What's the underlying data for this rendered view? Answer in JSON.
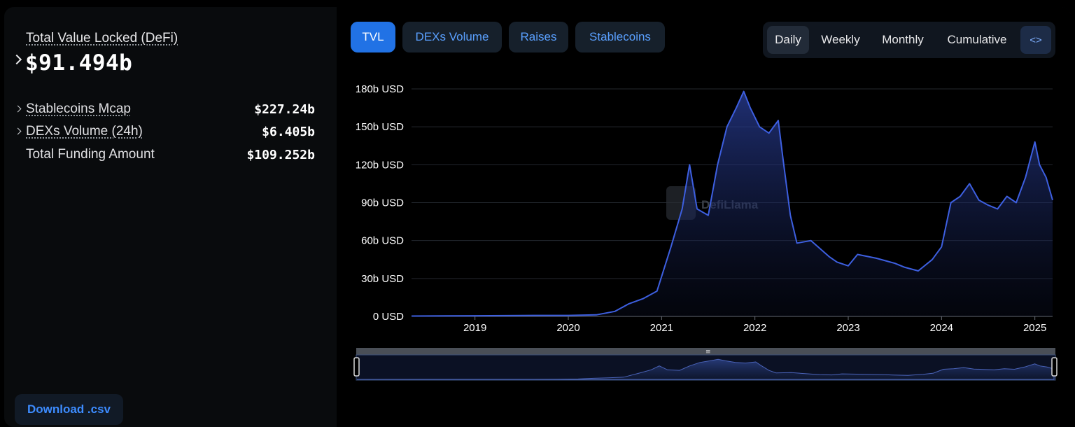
{
  "summary": {
    "tvl_label": "Total Value Locked (DeFi)",
    "tvl_value": "$91.494b",
    "metrics": [
      {
        "label": "Stablecoins Mcap",
        "value": "$227.24b"
      },
      {
        "label": "DEXs Volume (24h)",
        "value": "$6.405b"
      },
      {
        "label": "Total Funding Amount",
        "value": "$109.252b"
      }
    ],
    "download_label": "Download .csv"
  },
  "tabs": [
    {
      "label": "TVL"
    },
    {
      "label": "DEXs Volume"
    },
    {
      "label": "Raises"
    },
    {
      "label": "Stablecoins"
    }
  ],
  "periods": [
    {
      "label": "Daily"
    },
    {
      "label": "Weekly"
    },
    {
      "label": "Monthly"
    },
    {
      "label": "Cumulative"
    }
  ],
  "embed_icon": "code-embed-icon",
  "watermark": "DefiLlama",
  "colors": {
    "line": "#3d5fe0",
    "accent": "#2172e5",
    "link": "#5aa0ff"
  },
  "chart_data": {
    "type": "area",
    "title": "",
    "xlabel": "",
    "ylabel": "",
    "ylim": [
      0,
      180
    ],
    "y_unit": "b USD",
    "y_ticks": [
      "0 USD",
      "30b USD",
      "60b USD",
      "90b USD",
      "120b USD",
      "150b USD",
      "180b USD"
    ],
    "x_ticks": [
      "2019",
      "2020",
      "2021",
      "2022",
      "2023",
      "2024",
      "2025"
    ],
    "grid": true,
    "x": [
      2018.32,
      2019.0,
      2019.5,
      2020.0,
      2020.3,
      2020.5,
      2020.65,
      2020.8,
      2020.95,
      2021.1,
      2021.22,
      2021.3,
      2021.38,
      2021.5,
      2021.6,
      2021.7,
      2021.8,
      2021.88,
      2021.95,
      2022.05,
      2022.15,
      2022.25,
      2022.3,
      2022.38,
      2022.45,
      2022.6,
      2022.8,
      2022.88,
      2023.0,
      2023.1,
      2023.3,
      2023.5,
      2023.6,
      2023.75,
      2023.9,
      2024.0,
      2024.1,
      2024.2,
      2024.3,
      2024.4,
      2024.5,
      2024.6,
      2024.7,
      2024.8,
      2024.9,
      2025.0,
      2025.05,
      2025.12,
      2025.19
    ],
    "series": [
      {
        "values": [
          0.3,
          0.5,
          0.7,
          0.8,
          1.2,
          4,
          10,
          14,
          20,
          55,
          85,
          120,
          85,
          80,
          120,
          150,
          165,
          178,
          165,
          150,
          145,
          155,
          125,
          80,
          58,
          60,
          47,
          43,
          40,
          49,
          46,
          42,
          39,
          36,
          45,
          55,
          90,
          95,
          105,
          92,
          88,
          85,
          95,
          90,
          110,
          138,
          120,
          110,
          92
        ]
      }
    ]
  }
}
